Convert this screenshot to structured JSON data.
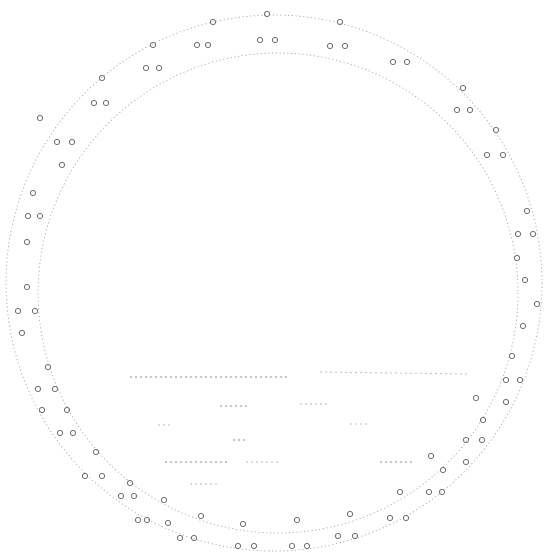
{
  "figure": {
    "description_words": [],
    "colors": {
      "background": "#ffffff",
      "ring_stroke": "#9a9a9a",
      "marks": "#5e5e5e",
      "horizon_lines": "#8a8a8a"
    }
  }
}
